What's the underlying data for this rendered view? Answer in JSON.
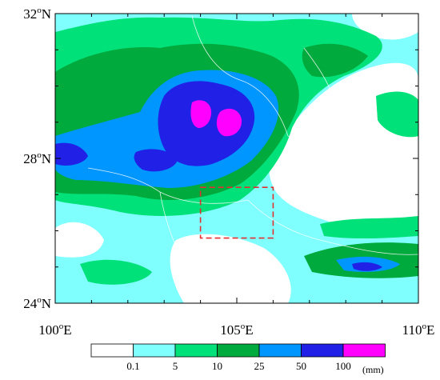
{
  "map": {
    "lat_labels": [
      {
        "value": 32,
        "text": "32",
        "deg": "o",
        "hemi": "N"
      },
      {
        "value": 28,
        "text": "28",
        "deg": "o",
        "hemi": "N"
      },
      {
        "value": 24,
        "text": "24",
        "deg": "o",
        "hemi": "N"
      }
    ],
    "lon_labels": [
      {
        "value": 100,
        "text": "100",
        "deg": "o",
        "hemi": "E"
      },
      {
        "value": 105,
        "text": "105",
        "deg": "o",
        "hemi": "E"
      },
      {
        "value": 110,
        "text": "110",
        "deg": "o",
        "hemi": "E"
      }
    ],
    "lon_range": [
      100,
      110
    ],
    "lat_range": [
      24,
      32
    ],
    "box": {
      "lon": [
        104,
        106
      ],
      "lat": [
        25.8,
        27.2
      ],
      "color": "#e03030"
    }
  },
  "colorbar": {
    "levels": [
      "0.1",
      "5",
      "10",
      "25",
      "50",
      "100"
    ],
    "unit": "(mm)",
    "colors": [
      "#ffffff",
      "#80ffff",
      "#00e17a",
      "#00aa3c",
      "#0096ff",
      "#2020e6",
      "#ff00ff"
    ]
  }
}
